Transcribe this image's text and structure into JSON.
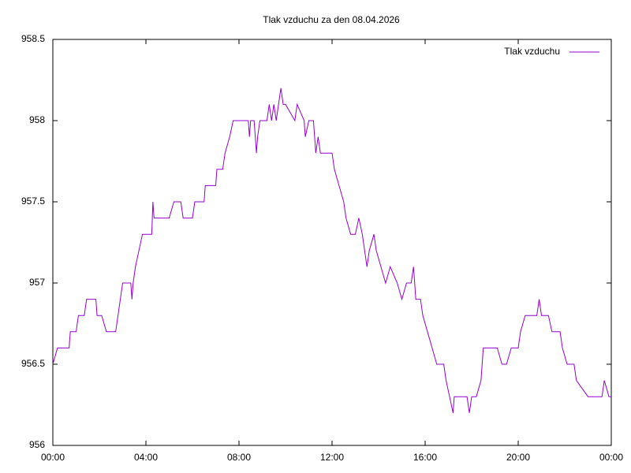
{
  "chart_data": {
    "type": "line",
    "title": "Tlak vzduchu za den 08.04.2026",
    "x": [
      0,
      0.2,
      0.7,
      0.75,
      1.0,
      1.1,
      1.35,
      1.45,
      1.85,
      1.9,
      2.1,
      2.3,
      2.7,
      2.8,
      2.9,
      3.0,
      3.35,
      3.4,
      3.45,
      3.55,
      3.7,
      3.85,
      4.25,
      4.3,
      4.35,
      5.0,
      5.2,
      5.5,
      5.6,
      6.0,
      6.1,
      6.5,
      6.55,
      7.0,
      7.05,
      7.3,
      7.4,
      7.6,
      7.75,
      8.4,
      8.45,
      8.5,
      8.65,
      8.75,
      8.8,
      8.9,
      9.2,
      9.3,
      9.4,
      9.5,
      9.6,
      9.7,
      9.8,
      9.9,
      10.0,
      10.4,
      10.5,
      10.8,
      10.85,
      11.0,
      11.2,
      11.3,
      11.4,
      11.5,
      12.0,
      12.1,
      12.3,
      12.5,
      12.6,
      12.8,
      13.0,
      13.15,
      13.3,
      13.5,
      13.6,
      13.8,
      13.9,
      14.1,
      14.3,
      14.5,
      14.8,
      15.0,
      15.2,
      15.4,
      15.5,
      15.6,
      15.8,
      15.9,
      16.1,
      16.3,
      16.5,
      16.8,
      16.9,
      17.2,
      17.25,
      17.8,
      17.9,
      18.0,
      18.2,
      18.4,
      18.5,
      19.1,
      19.3,
      19.5,
      19.7,
      20.0,
      20.1,
      20.3,
      20.8,
      20.9,
      21.0,
      21.3,
      21.45,
      21.8,
      21.9,
      22.1,
      22.4,
      22.5,
      23.0,
      23.6,
      23.7,
      23.9,
      24
    ],
    "series": [
      {
        "name": "Tlak vzduchu",
        "color": "#9400d3",
        "values": [
          956.5,
          956.6,
          956.6,
          956.7,
          956.7,
          956.8,
          956.8,
          956.9,
          956.9,
          956.8,
          956.8,
          956.7,
          956.7,
          956.8,
          956.9,
          957.0,
          957.0,
          956.9,
          957.0,
          957.1,
          957.2,
          957.3,
          957.3,
          957.5,
          957.4,
          957.4,
          957.5,
          957.5,
          957.4,
          957.4,
          957.5,
          957.5,
          957.6,
          957.6,
          957.7,
          957.7,
          957.8,
          957.9,
          958.0,
          958.0,
          957.9,
          958.0,
          958.0,
          957.8,
          957.9,
          958.0,
          958.0,
          958.1,
          958.0,
          958.1,
          958.0,
          958.1,
          958.2,
          958.1,
          958.1,
          958.0,
          958.1,
          958.0,
          957.9,
          958.0,
          958.0,
          957.8,
          957.9,
          957.8,
          957.8,
          957.7,
          957.6,
          957.5,
          957.4,
          957.3,
          957.3,
          957.4,
          957.3,
          957.1,
          957.2,
          957.3,
          957.2,
          957.1,
          957.0,
          957.1,
          957.0,
          956.9,
          957.0,
          957.0,
          957.1,
          956.9,
          956.9,
          956.8,
          956.7,
          956.6,
          956.5,
          956.5,
          956.4,
          956.2,
          956.3,
          956.3,
          956.2,
          956.3,
          956.3,
          956.4,
          956.6,
          956.6,
          956.5,
          956.5,
          956.6,
          956.6,
          956.7,
          956.8,
          956.8,
          956.9,
          956.8,
          956.8,
          956.7,
          956.7,
          956.6,
          956.5,
          956.5,
          956.4,
          956.3,
          956.3,
          956.4,
          956.3,
          956.3
        ]
      }
    ],
    "xlim": [
      0,
      24
    ],
    "xticks": [
      {
        "value": 0,
        "label": "00:00"
      },
      {
        "value": 4,
        "label": "04:00"
      },
      {
        "value": 8,
        "label": "08:00"
      },
      {
        "value": 12,
        "label": "12:00"
      },
      {
        "value": 16,
        "label": "16:00"
      },
      {
        "value": 20,
        "label": "20:00"
      },
      {
        "value": 24,
        "label": "00:00"
      }
    ],
    "ylim": [
      956,
      958.5
    ],
    "yticks": [
      956,
      956.5,
      957,
      957.5,
      958,
      958.5
    ],
    "grid": false,
    "legend": "top-right"
  }
}
